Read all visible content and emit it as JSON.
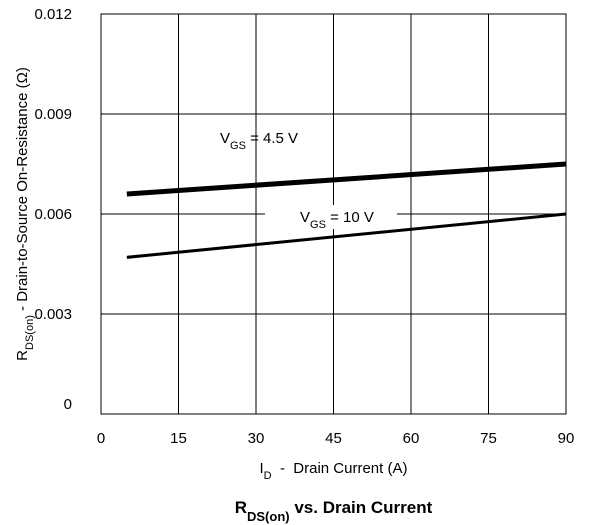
{
  "chart_data": {
    "type": "line",
    "title": {
      "main": "R",
      "sub": "DS(on)",
      "rest": " vs. Drain Current"
    },
    "xlabel": {
      "pre": "I",
      "sub": "D",
      "rest": "  -  Drain Current (A)"
    },
    "ylabel": {
      "pre": "R",
      "sub": "DS(on)",
      "rest": " - Drain-to-Source On-Resistance (Ω)"
    },
    "xlim": [
      0,
      90
    ],
    "ylim": [
      0,
      0.012
    ],
    "xticks": [
      "0",
      "15",
      "30",
      "45",
      "60",
      "75",
      "90"
    ],
    "yticks": [
      "0",
      "0.003",
      "0.006",
      "0.009",
      "0.012"
    ],
    "grid": true,
    "series": [
      {
        "label_pre": "V",
        "label_sub": "GS",
        "label_rest": " = 4.5 V",
        "x": [
          5,
          90
        ],
        "y": [
          0.0066,
          0.0075
        ],
        "stroke": 5
      },
      {
        "label_pre": "V",
        "label_sub": "GS",
        "label_rest": " = 10 V",
        "x": [
          5,
          90
        ],
        "y": [
          0.0047,
          0.006
        ],
        "stroke": 3
      }
    ]
  }
}
